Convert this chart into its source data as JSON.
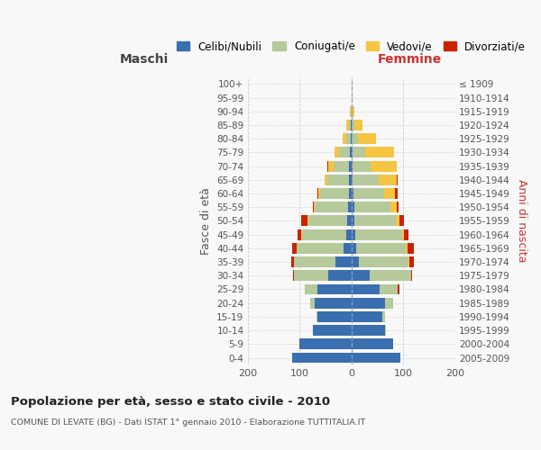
{
  "age_groups": [
    "0-4",
    "5-9",
    "10-14",
    "15-19",
    "20-24",
    "25-29",
    "30-34",
    "35-39",
    "40-44",
    "45-49",
    "50-54",
    "55-59",
    "60-64",
    "65-69",
    "70-74",
    "75-79",
    "80-84",
    "85-89",
    "90-94",
    "95-99",
    "100+"
  ],
  "birth_years": [
    "2005-2009",
    "2000-2004",
    "1995-1999",
    "1990-1994",
    "1985-1989",
    "1980-1984",
    "1975-1979",
    "1970-1974",
    "1965-1969",
    "1960-1964",
    "1955-1959",
    "1950-1954",
    "1945-1949",
    "1940-1944",
    "1935-1939",
    "1930-1934",
    "1925-1929",
    "1920-1924",
    "1915-1919",
    "1910-1914",
    "≤ 1909"
  ],
  "male_celibi": [
    115,
    100,
    75,
    65,
    70,
    65,
    45,
    30,
    15,
    10,
    8,
    6,
    5,
    4,
    4,
    3,
    1,
    1,
    0,
    0,
    0
  ],
  "male_coniugati": [
    0,
    0,
    0,
    3,
    10,
    25,
    65,
    80,
    90,
    85,
    75,
    65,
    55,
    42,
    30,
    20,
    8,
    4,
    1,
    0,
    0
  ],
  "male_vedovi": [
    0,
    0,
    0,
    0,
    0,
    0,
    0,
    1,
    1,
    1,
    1,
    2,
    3,
    5,
    10,
    10,
    8,
    4,
    1,
    0,
    0
  ],
  "male_divorziati": [
    0,
    0,
    0,
    0,
    0,
    0,
    2,
    5,
    8,
    8,
    12,
    2,
    3,
    0,
    2,
    0,
    0,
    0,
    0,
    0,
    0
  ],
  "female_nubili": [
    95,
    80,
    65,
    60,
    65,
    55,
    35,
    15,
    10,
    8,
    6,
    5,
    4,
    3,
    3,
    2,
    1,
    1,
    0,
    0,
    0
  ],
  "female_coniugate": [
    0,
    0,
    2,
    5,
    15,
    35,
    80,
    95,
    95,
    90,
    80,
    70,
    60,
    50,
    35,
    25,
    12,
    5,
    2,
    0,
    0
  ],
  "female_vedove": [
    0,
    0,
    0,
    0,
    0,
    0,
    1,
    2,
    4,
    4,
    6,
    12,
    20,
    35,
    50,
    55,
    35,
    15,
    4,
    2,
    0
  ],
  "female_divorziate": [
    0,
    0,
    0,
    0,
    0,
    2,
    2,
    8,
    12,
    8,
    9,
    4,
    5,
    2,
    0,
    0,
    0,
    0,
    0,
    0,
    0
  ],
  "colors_celibi": "#3a6faf",
  "colors_coniugati": "#b5c99a",
  "colors_vedovi": "#f5c542",
  "colors_divorziati": "#cc2200",
  "title": "Popolazione per età, sesso e stato civile - 2010",
  "subtitle": "COMUNE DI LEVATE (BG) - Dati ISTAT 1° gennaio 2010 - Elaborazione TUTTITALIA.IT",
  "label_maschi": "Maschi",
  "label_femmine": "Femmine",
  "ylabel_left": "Fasce di età",
  "ylabel_right": "Anni di nascita",
  "legend_labels": [
    "Celibi/Nubili",
    "Coniugati/e",
    "Vedovi/e",
    "Divorziati/e"
  ],
  "xlim": 200,
  "bg_color": "#f8f8f8",
  "grid_color": "#cccccc"
}
